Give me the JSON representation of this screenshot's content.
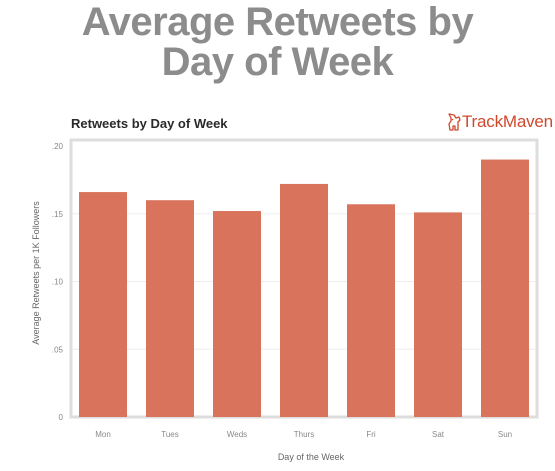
{
  "headline": {
    "line1": "Average Retweets by",
    "line2": "Day of Week"
  },
  "brand": {
    "name": "TrackMaven",
    "icon": "dog-logo-icon"
  },
  "colors": {
    "bar": "#d9735c",
    "headline": "#8c8c8c",
    "brand": "#d0492c",
    "plot_border": "#dddddd",
    "grid": "#eeeeee"
  },
  "chart_data": {
    "type": "bar",
    "title": "Retweets by Day of Week",
    "xlabel": "Day of the Week",
    "ylabel": "Average Retweets per 1K Followers",
    "categories": [
      "Mon",
      "Tues",
      "Weds",
      "Thurs",
      "Fri",
      "Sat",
      "Sun"
    ],
    "values": [
      0.166,
      0.16,
      0.152,
      0.172,
      0.157,
      0.151,
      0.19
    ],
    "ylim": [
      0,
      0.2
    ],
    "yticks": [
      0,
      0.05,
      0.1,
      0.15,
      0.2
    ],
    "ytick_labels": [
      "0",
      ".05",
      ".10",
      ".15",
      ".20"
    ],
    "grid": true,
    "legend": "none"
  }
}
